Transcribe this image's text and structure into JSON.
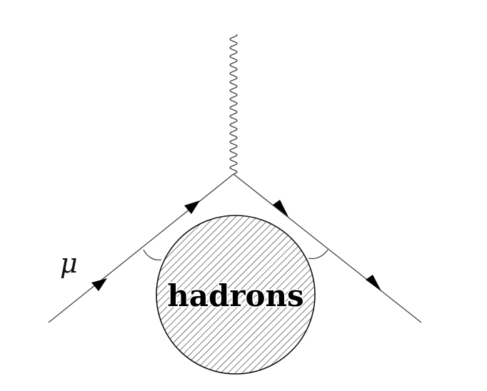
{
  "diagram": {
    "incoming_particle_label": "μ",
    "blob_label": "hadrons",
    "description_type": "Feynman diagram"
  },
  "colors": {
    "line": "#444444",
    "arrow": "#000000",
    "background": "#ffffff"
  }
}
